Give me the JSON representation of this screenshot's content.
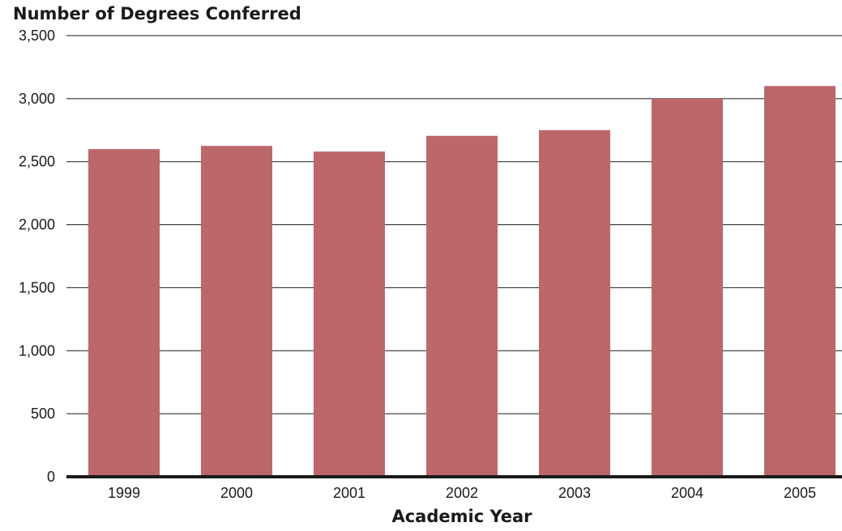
{
  "chart_data": {
    "type": "bar",
    "title": "Number of Degrees Conferred",
    "xlabel": "Academic Year",
    "ylabel": "",
    "categories": [
      "1999",
      "2000",
      "2001",
      "2002",
      "2003",
      "2004",
      "2005"
    ],
    "values": [
      2600,
      2625,
      2580,
      2705,
      2750,
      3000,
      3100
    ],
    "ylim": [
      0,
      3500
    ],
    "yticks": [
      "0",
      "500",
      "1,000",
      "1,500",
      "2,000",
      "2,500",
      "3,000",
      "3,500"
    ],
    "ytick_values": [
      0,
      500,
      1000,
      1500,
      2000,
      2500,
      3000,
      3500
    ],
    "grid": true,
    "bar_color": "#bc6769",
    "axis_color": "#1a1a1a"
  }
}
